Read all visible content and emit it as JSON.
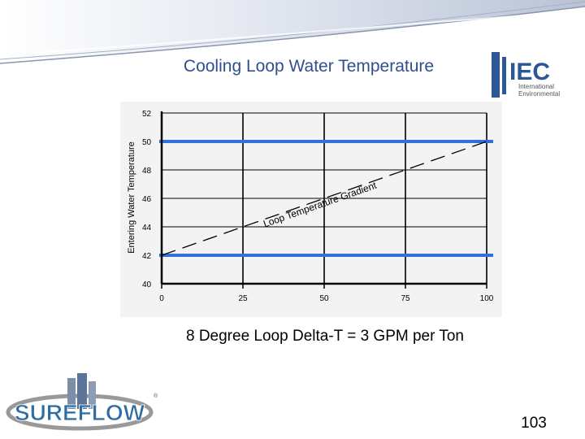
{
  "slide": {
    "title": "Cooling Loop Water Temperature",
    "caption": "8 Degree Loop Delta-T = 3 GPM per Ton",
    "page_number": "103"
  },
  "logos": {
    "iec": {
      "mark": "IEC",
      "line1": "International",
      "line2": "Environmental",
      "accent_color": "#2b5797"
    },
    "sureflow": {
      "text": "SUREFLOW",
      "color": "#2e6da4"
    }
  },
  "chart_data": {
    "type": "line",
    "title": "",
    "xlabel": "",
    "ylabel": "Entering Water Temperature",
    "xlim": [
      0,
      100
    ],
    "ylim": [
      40,
      52
    ],
    "x_ticks": [
      0,
      25,
      50,
      75,
      100
    ],
    "y_ticks": [
      40,
      42,
      44,
      46,
      48,
      50,
      52
    ],
    "grid": true,
    "series": [
      {
        "name": "",
        "style": "dashed",
        "color": "#000000",
        "x": [
          0,
          100
        ],
        "y": [
          42,
          50
        ]
      }
    ],
    "reference_lines": [
      {
        "y": 50,
        "color": "#2f6fde"
      },
      {
        "y": 42,
        "color": "#2f6fde"
      }
    ],
    "annotations": [
      {
        "text": "Loop Temperature Gradient",
        "x_start": 33,
        "x_end": 65
      }
    ]
  }
}
